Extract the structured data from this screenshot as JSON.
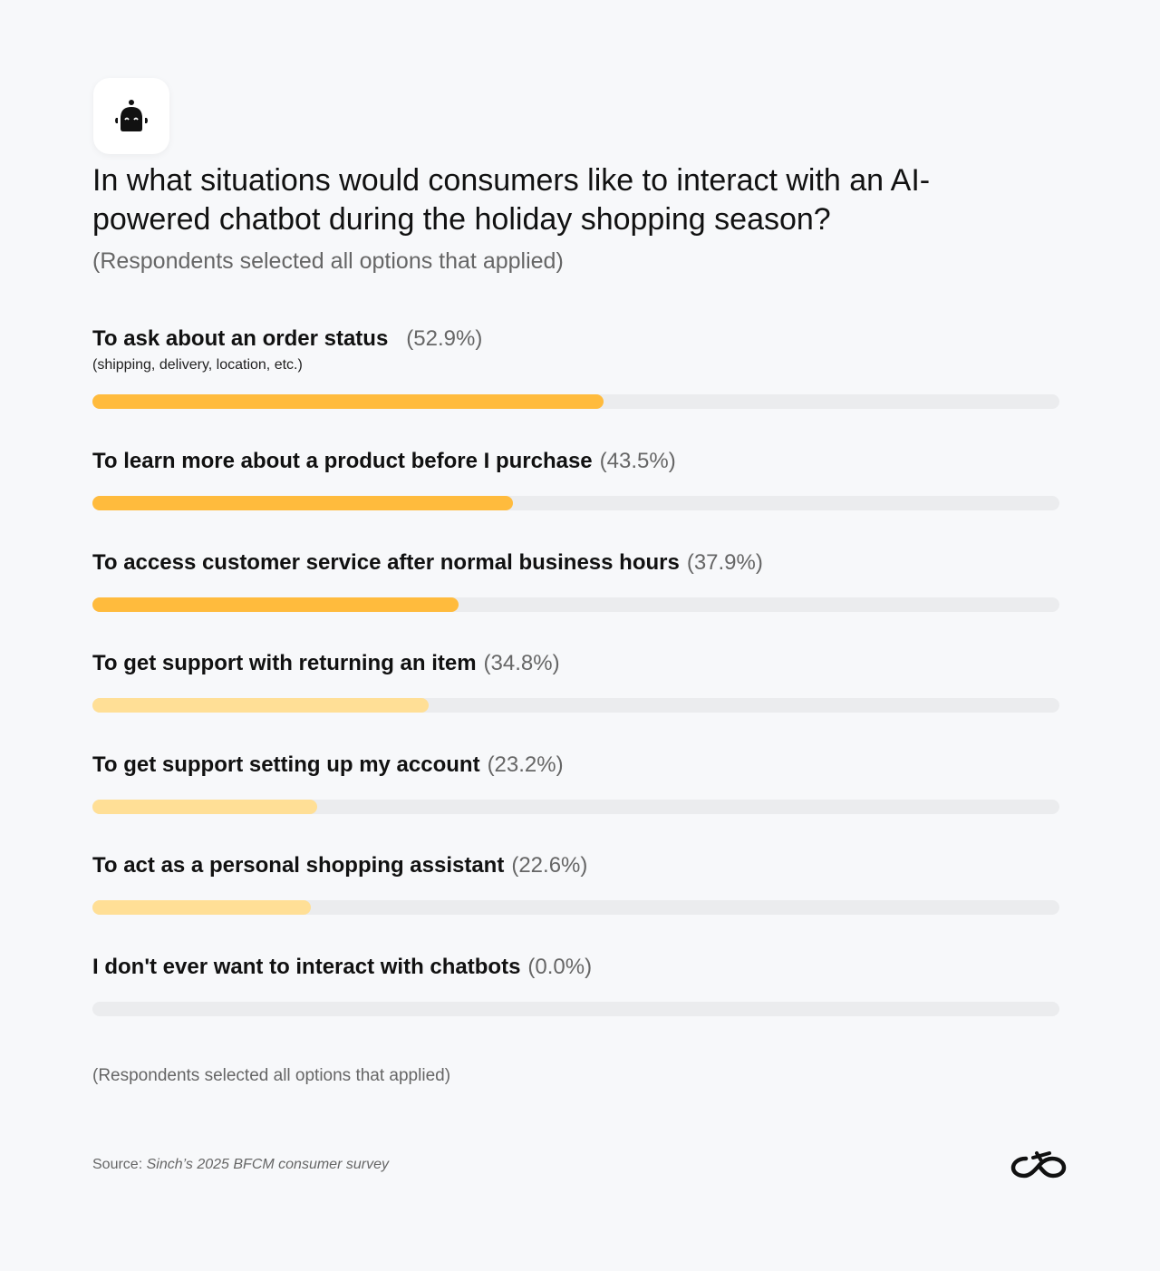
{
  "header": {
    "icon": "robot-icon",
    "title": "In what situations would consumers like to interact with an AI-powered chatbot during the holiday shopping season?",
    "subtitle": "(Respondents selected all options that applied)"
  },
  "chart_data": {
    "type": "bar",
    "orientation": "horizontal",
    "title": "In what situations would consumers like to interact with an AI-powered chatbot during the holiday shopping season?",
    "xlim": [
      0,
      100
    ],
    "categories": [
      "To ask about an order status",
      "To learn more about a product before I purchase",
      "To access customer service after normal business hours",
      "To get support with returning an item",
      "To get support setting up my account",
      "To act as a personal shopping assistant",
      "I don't ever want to interact with chatbots"
    ],
    "values": [
      52.9,
      43.5,
      37.9,
      34.8,
      23.2,
      22.6,
      0.0
    ],
    "value_labels": [
      "(52.9%)",
      "(43.5%)",
      "(37.9%)",
      "(34.8%)",
      "(23.2%)",
      "(22.6%)",
      "(0.0%)"
    ],
    "notes": [
      "(shipping, delivery, location, etc.)",
      "",
      "",
      "",
      "",
      "",
      ""
    ],
    "colors": [
      "#ffbb3d",
      "#ffbb3d",
      "#ffbb3d",
      "#ffdf96",
      "#ffdf96",
      "#ffdf96",
      "#ffdf96"
    ],
    "track_color": "#ebecee"
  },
  "footer": {
    "footnote": "(Respondents selected all options that applied)",
    "source_prefix": "Source: ",
    "source_text": "Sinch’s 2025 BFCM consumer survey",
    "logo": "sinch-logo"
  }
}
